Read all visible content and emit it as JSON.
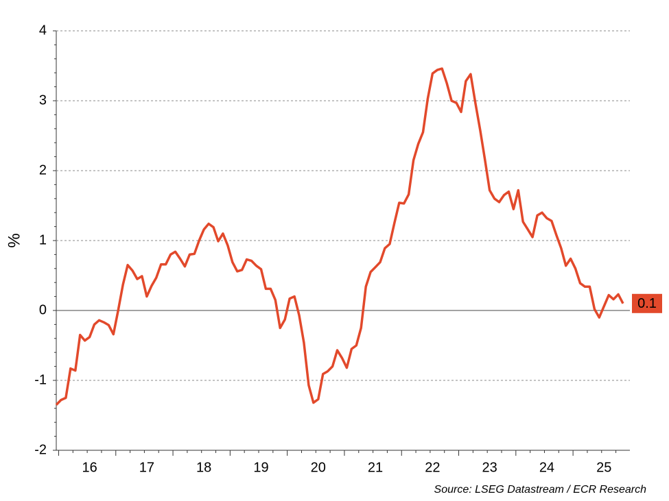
{
  "chart_data": {
    "type": "line",
    "y_label": "%",
    "source": "Source: LSEG Datastream / ECR Research",
    "categories": [
      null,
      null,
      null,
      null,
      null,
      null,
      null,
      "16",
      null,
      null,
      null,
      null,
      null,
      null,
      null,
      null,
      null,
      null,
      null,
      "17",
      null,
      null,
      null,
      null,
      null,
      null,
      null,
      null,
      null,
      null,
      null,
      "18",
      null,
      null,
      null,
      null,
      null,
      null,
      null,
      null,
      null,
      null,
      null,
      "19",
      null,
      null,
      null,
      null,
      null,
      null,
      null,
      null,
      null,
      null,
      null,
      "20",
      null,
      null,
      null,
      null,
      null,
      null,
      null,
      null,
      null,
      null,
      null,
      "21",
      null,
      null,
      null,
      null,
      null,
      null,
      null,
      null,
      null,
      null,
      null,
      "22",
      null,
      null,
      null,
      null,
      null,
      null,
      null,
      null,
      null,
      null,
      null,
      "23",
      null,
      null,
      null,
      null,
      null,
      null,
      null,
      null,
      null,
      null,
      null,
      "24",
      null,
      null,
      null,
      null,
      null,
      null,
      null,
      null,
      null,
      null,
      null,
      "25",
      null,
      null,
      null,
      null
    ],
    "series": [
      {
        "color": "#e2492b",
        "values": [
          -1.35,
          -1.28,
          -1.25,
          -0.83,
          -0.86,
          -0.35,
          -0.43,
          -0.38,
          -0.2,
          -0.14,
          -0.17,
          -0.21,
          -0.34,
          0.0,
          0.37,
          0.65,
          0.57,
          0.45,
          0.49,
          0.2,
          0.35,
          0.47,
          0.66,
          0.66,
          0.8,
          0.84,
          0.74,
          0.63,
          0.8,
          0.81,
          1.0,
          1.16,
          1.24,
          1.19,
          0.99,
          1.1,
          0.93,
          0.69,
          0.56,
          0.58,
          0.73,
          0.71,
          0.64,
          0.59,
          0.31,
          0.31,
          0.15,
          -0.25,
          -0.13,
          0.17,
          0.2,
          -0.07,
          -0.46,
          -1.07,
          -1.32,
          -1.27,
          -0.91,
          -0.87,
          -0.8,
          -0.57,
          -0.68,
          -0.82,
          -0.55,
          -0.5,
          -0.25,
          0.34,
          0.55,
          0.62,
          0.69,
          0.89,
          0.95,
          1.25,
          1.54,
          1.53,
          1.66,
          2.15,
          2.38,
          2.55,
          3.03,
          3.39,
          3.44,
          3.46,
          3.25,
          3.0,
          2.97,
          2.84,
          3.28,
          3.38,
          2.97,
          2.58,
          2.16,
          1.72,
          1.6,
          1.55,
          1.65,
          1.7,
          1.45,
          1.72,
          1.27,
          1.16,
          1.05,
          1.36,
          1.4,
          1.32,
          1.28,
          1.08,
          0.89,
          0.64,
          0.74,
          0.6,
          0.39,
          0.34,
          0.34,
          0.02,
          -0.1,
          0.06,
          0.22,
          0.16,
          0.23,
          0.1
        ]
      }
    ],
    "ylim": [
      -2,
      4
    ],
    "yticks": [
      -2,
      -1,
      0,
      1,
      2,
      3,
      4
    ],
    "grid": true
  }
}
